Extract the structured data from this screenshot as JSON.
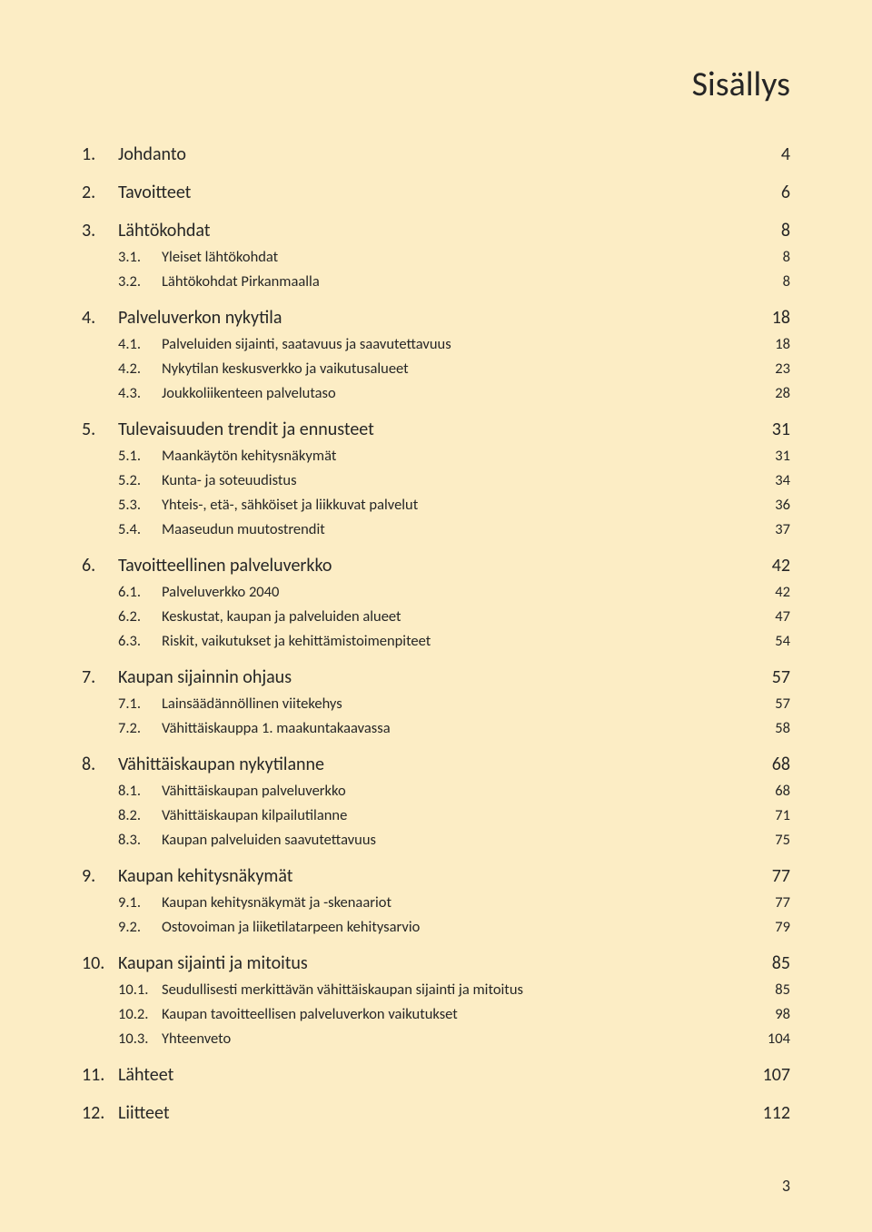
{
  "page_title": "Sisällys",
  "footer_page_number": "3",
  "colors": {
    "background": "#fcedc5",
    "text": "#262626"
  },
  "typography": {
    "title_fontsize_pt": 28,
    "lvl1_fontsize_pt": 15,
    "lvl2_fontsize_pt": 12,
    "footer_fontsize_pt": 13,
    "font_family": "Calibri"
  },
  "toc": [
    {
      "num": "1.",
      "label": "Johdanto",
      "page": "4",
      "subs": []
    },
    {
      "num": "2.",
      "label": "Tavoitteet",
      "page": "6",
      "subs": []
    },
    {
      "num": "3.",
      "label": "Lähtökohdat",
      "page": "8",
      "subs": [
        {
          "num": "3.1.",
          "label": "Yleiset lähtökohdat",
          "page": "8"
        },
        {
          "num": "3.2.",
          "label": "Lähtökohdat Pirkanmaalla",
          "page": "8"
        }
      ]
    },
    {
      "num": "4.",
      "label": "Palveluverkon nykytila",
      "page": "18",
      "subs": [
        {
          "num": "4.1.",
          "label": "Palveluiden sijainti, saatavuus ja saavutettavuus",
          "page": "18"
        },
        {
          "num": "4.2.",
          "label": "Nykytilan keskusverkko ja vaikutusalueet",
          "page": "23"
        },
        {
          "num": "4.3.",
          "label": "Joukkoliikenteen palvelutaso",
          "page": "28"
        }
      ]
    },
    {
      "num": "5.",
      "label": "Tulevaisuuden trendit ja ennusteet",
      "page": "31",
      "subs": [
        {
          "num": "5.1.",
          "label": "Maankäytön kehitysnäkymät",
          "page": "31"
        },
        {
          "num": "5.2.",
          "label": "Kunta- ja soteuudistus",
          "page": "34"
        },
        {
          "num": "5.3.",
          "label": "Yhteis-, etä-, sähköiset ja liikkuvat palvelut",
          "page": "36"
        },
        {
          "num": "5.4.",
          "label": "Maaseudun muutostrendit",
          "page": "37"
        }
      ]
    },
    {
      "num": "6.",
      "label": "Tavoitteellinen palveluverkko",
      "page": "42",
      "subs": [
        {
          "num": "6.1.",
          "label": "Palveluverkko 2040",
          "page": "42"
        },
        {
          "num": "6.2.",
          "label": "Keskustat, kaupan ja palveluiden alueet",
          "page": "47"
        },
        {
          "num": "6.3.",
          "label": "Riskit, vaikutukset ja kehittämistoimenpiteet",
          "page": "54"
        }
      ]
    },
    {
      "num": "7.",
      "label": "Kaupan sijainnin ohjaus",
      "page": "57",
      "subs": [
        {
          "num": "7.1.",
          "label": "Lainsäädännöllinen viitekehys",
          "page": "57"
        },
        {
          "num": "7.2.",
          "label": "Vähittäiskauppa 1. maakuntakaavassa",
          "page": "58"
        }
      ]
    },
    {
      "num": "8.",
      "label": "Vähittäiskaupan nykytilanne",
      "page": "68",
      "subs": [
        {
          "num": "8.1.",
          "label": "Vähittäiskaupan palveluverkko",
          "page": "68"
        },
        {
          "num": "8.2.",
          "label": "Vähittäiskaupan kilpailutilanne",
          "page": "71"
        },
        {
          "num": "8.3.",
          "label": "Kaupan palveluiden saavutettavuus",
          "page": "75"
        }
      ]
    },
    {
      "num": "9.",
      "label": "Kaupan kehitysnäkymät",
      "page": "77",
      "subs": [
        {
          "num": "9.1.",
          "label": "Kaupan kehitysnäkymät ja -skenaariot",
          "page": "77"
        },
        {
          "num": "9.2.",
          "label": "Ostovoiman ja liiketilatarpeen kehitysarvio",
          "page": "79"
        }
      ]
    },
    {
      "num": "10.",
      "label": "Kaupan sijainti ja mitoitus",
      "page": "85",
      "subs": [
        {
          "num": "10.1.",
          "label": "Seudullisesti merkittävän vähittäiskaupan sijainti ja mitoitus",
          "page": "85"
        },
        {
          "num": "10.2.",
          "label": "Kaupan tavoitteellisen palveluverkon vaikutukset",
          "page": "98"
        },
        {
          "num": "10.3.",
          "label": "Yhteenveto",
          "page": "104"
        }
      ]
    },
    {
      "num": "11.",
      "label": "Lähteet",
      "page": "107",
      "subs": []
    },
    {
      "num": "12.",
      "label": "Liitteet",
      "page": "112",
      "subs": []
    }
  ]
}
